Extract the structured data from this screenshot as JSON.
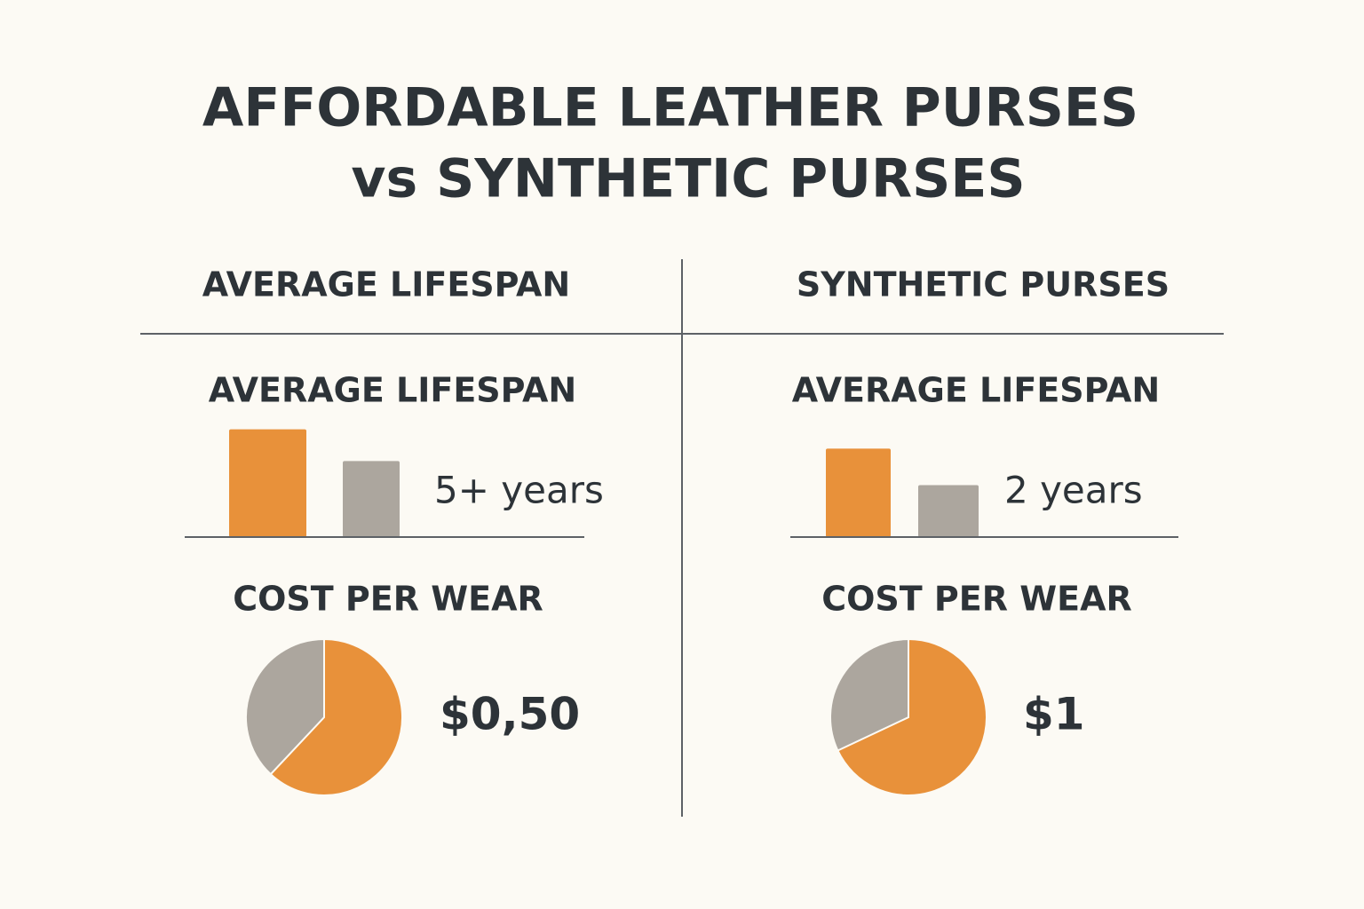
{
  "title": [
    "AFFORDABLE LEATHER PURSES",
    "vs SYNTHETIC PURSES"
  ],
  "bar_ylim": [
    0,
    120
  ],
  "columns": [
    {
      "header": "AVERAGE LIFESPAN",
      "lifespan_heading": "AVERAGE LIFESPAN",
      "bars": {
        "values": [
          112,
          79
        ],
        "colors": [
          "#e8913a",
          "#aca69e"
        ]
      },
      "lifespan_label": "5+ years",
      "cost_heading": "COST PER WEAR",
      "pie": {
        "values": [
          62,
          38
        ],
        "colors": [
          "#e8913a",
          "#aca69e"
        ]
      },
      "cost_label": "$0,50"
    },
    {
      "header": "SYNTHETIC PURSES",
      "lifespan_heading": "AVERAGE LIFESPAN",
      "bars": {
        "values": [
          92,
          54
        ],
        "colors": [
          "#e8913a",
          "#aca69e"
        ]
      },
      "lifespan_label": "2 years",
      "cost_heading": "COST PER WEAR",
      "pie": {
        "values": [
          68,
          32
        ],
        "colors": [
          "#e8913a",
          "#aca69e"
        ]
      },
      "cost_label": "$1"
    }
  ]
}
